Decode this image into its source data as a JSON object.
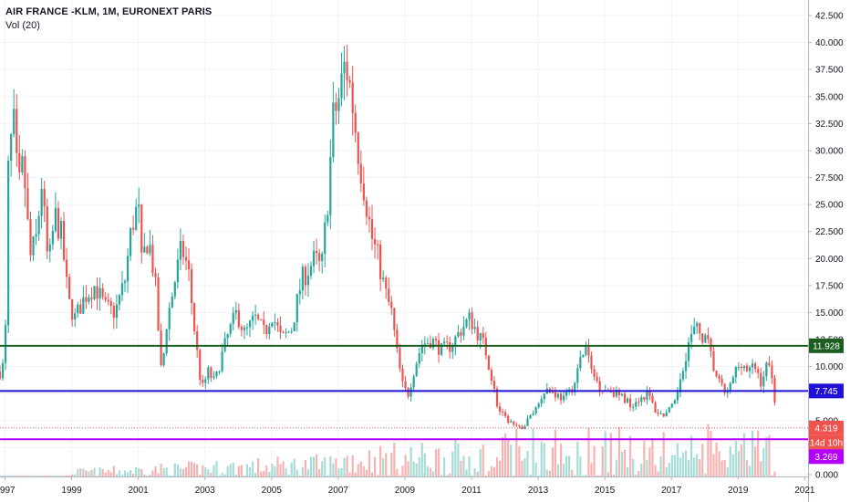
{
  "header": {
    "title": "AIR FRANCE -KLM, 1M, EURONEXT PARIS",
    "indicator": "Vol (20)"
  },
  "colors": {
    "up": "#26a69a",
    "down": "#ef5350",
    "upVol": "#a8dcd6",
    "downVol": "#f7b3b2",
    "grid": "#f0f3fa",
    "axisText": "#131722",
    "green": "#1b5e20",
    "blue": "#1f12d6",
    "purple": "#b300ff",
    "red": "#ef5350"
  },
  "chart_data": {
    "type": "candlestick",
    "x_range": [
      1996.85,
      2021.1
    ],
    "ylim": [
      0,
      42.5
    ],
    "y_ticks": [
      "42.500",
      "40.000",
      "37.500",
      "35.000",
      "32.500",
      "30.000",
      "27.500",
      "25.000",
      "22.500",
      "20.000",
      "17.500",
      "15.000",
      "12.500",
      "10.000",
      "7.500",
      "5.000",
      "2.500",
      "0.000"
    ],
    "x_ticks": [
      "1997",
      "1999",
      "2001",
      "2003",
      "2005",
      "2007",
      "2009",
      "2011",
      "2013",
      "2015",
      "2017",
      "2019",
      "2021"
    ],
    "lines": [
      {
        "name": "h-green",
        "value": 11.928,
        "label": "11.928",
        "color": "#1b5e20",
        "style": "solid"
      },
      {
        "name": "h-blue",
        "value": 7.745,
        "label": "7.745",
        "color": "#1f12d6",
        "style": "solid"
      },
      {
        "name": "h-red",
        "value": 4.319,
        "label": "4.319",
        "color": "#ef5350",
        "style": "dotted"
      },
      {
        "name": "h-purple",
        "value": 3.269,
        "label": "3.269",
        "color": "#b300ff",
        "style": "solid"
      }
    ],
    "countdown_label": "14d 10h",
    "anchors": [
      [
        1996.85,
        9.5
      ],
      [
        1997.0,
        10.5
      ],
      [
        1997.1,
        28
      ],
      [
        1997.25,
        33
      ],
      [
        1997.4,
        26
      ],
      [
        1997.55,
        29
      ],
      [
        1997.75,
        20
      ],
      [
        1997.95,
        22
      ],
      [
        1998.1,
        27
      ],
      [
        1998.3,
        19
      ],
      [
        1998.5,
        24
      ],
      [
        1998.7,
        22
      ],
      [
        1998.9,
        16
      ],
      [
        1999.1,
        14.5
      ],
      [
        1999.4,
        16.5
      ],
      [
        1999.7,
        17.5
      ],
      [
        2000.0,
        15.5
      ],
      [
        2000.3,
        15
      ],
      [
        2000.6,
        18
      ],
      [
        2000.8,
        23
      ],
      [
        2001.0,
        25
      ],
      [
        2001.1,
        19.5
      ],
      [
        2001.3,
        22
      ],
      [
        2001.5,
        18
      ],
      [
        2001.7,
        9
      ],
      [
        2001.85,
        14
      ],
      [
        2002.1,
        18
      ],
      [
        2002.3,
        21
      ],
      [
        2002.5,
        19
      ],
      [
        2002.7,
        13
      ],
      [
        2002.9,
        7.8
      ],
      [
        2003.1,
        9.5
      ],
      [
        2003.3,
        8.5
      ],
      [
        2003.5,
        11
      ],
      [
        2003.7,
        13
      ],
      [
        2003.95,
        15
      ],
      [
        2004.2,
        13
      ],
      [
        2004.5,
        14.5
      ],
      [
        2004.8,
        13
      ],
      [
        2005.0,
        15
      ],
      [
        2005.3,
        12.5
      ],
      [
        2005.6,
        13.5
      ],
      [
        2005.9,
        18
      ],
      [
        2006.1,
        19
      ],
      [
        2006.3,
        20
      ],
      [
        2006.5,
        19
      ],
      [
        2006.7,
        26
      ],
      [
        2006.85,
        33
      ],
      [
        2007.0,
        34.5
      ],
      [
        2007.2,
        38
      ],
      [
        2007.3,
        37
      ],
      [
        2007.4,
        35
      ],
      [
        2007.6,
        30
      ],
      [
        2007.8,
        26
      ],
      [
        2008.0,
        22
      ],
      [
        2008.2,
        20
      ],
      [
        2008.4,
        17
      ],
      [
        2008.6,
        15
      ],
      [
        2008.8,
        10.5
      ],
      [
        2008.95,
        8
      ],
      [
        2009.1,
        7.5
      ],
      [
        2009.3,
        10
      ],
      [
        2009.5,
        12
      ],
      [
        2009.8,
        12.5
      ],
      [
        2010.1,
        11.5
      ],
      [
        2010.4,
        12
      ],
      [
        2010.7,
        13.5
      ],
      [
        2010.95,
        14.5
      ],
      [
        2011.2,
        13
      ],
      [
        2011.4,
        11.8
      ],
      [
        2011.6,
        9
      ],
      [
        2011.8,
        6
      ],
      [
        2012.0,
        5.2
      ],
      [
        2012.2,
        4.8
      ],
      [
        2012.4,
        4.2
      ],
      [
        2012.6,
        4.6
      ],
      [
        2012.8,
        5.6
      ],
      [
        2013.0,
        6.5
      ],
      [
        2013.2,
        8
      ],
      [
        2013.5,
        7.5
      ],
      [
        2013.8,
        7
      ],
      [
        2014.1,
        8.5
      ],
      [
        2014.3,
        11
      ],
      [
        2014.45,
        11.8
      ],
      [
        2014.6,
        9.5
      ],
      [
        2014.9,
        8
      ],
      [
        2015.2,
        7.8
      ],
      [
        2015.5,
        7.2
      ],
      [
        2015.8,
        6.5
      ],
      [
        2016.0,
        7
      ],
      [
        2016.3,
        7.5
      ],
      [
        2016.5,
        6
      ],
      [
        2016.7,
        5.5
      ],
      [
        2016.9,
        5.8
      ],
      [
        2017.1,
        6.5
      ],
      [
        2017.3,
        9.5
      ],
      [
        2017.5,
        12
      ],
      [
        2017.7,
        13.5
      ],
      [
        2017.9,
        13
      ],
      [
        2018.1,
        12
      ],
      [
        2018.3,
        9.5
      ],
      [
        2018.5,
        8
      ],
      [
        2018.7,
        7.5
      ],
      [
        2018.9,
        9.5
      ],
      [
        2019.1,
        10.5
      ],
      [
        2019.3,
        9.5
      ],
      [
        2019.5,
        10
      ],
      [
        2019.7,
        8.5
      ],
      [
        2019.85,
        10
      ],
      [
        2020.0,
        9.8
      ],
      [
        2020.08,
        8
      ],
      [
        2020.15,
        4.5
      ]
    ],
    "volume_note": "Vol (20) histogram along bottom, bars colored by candle direction"
  }
}
